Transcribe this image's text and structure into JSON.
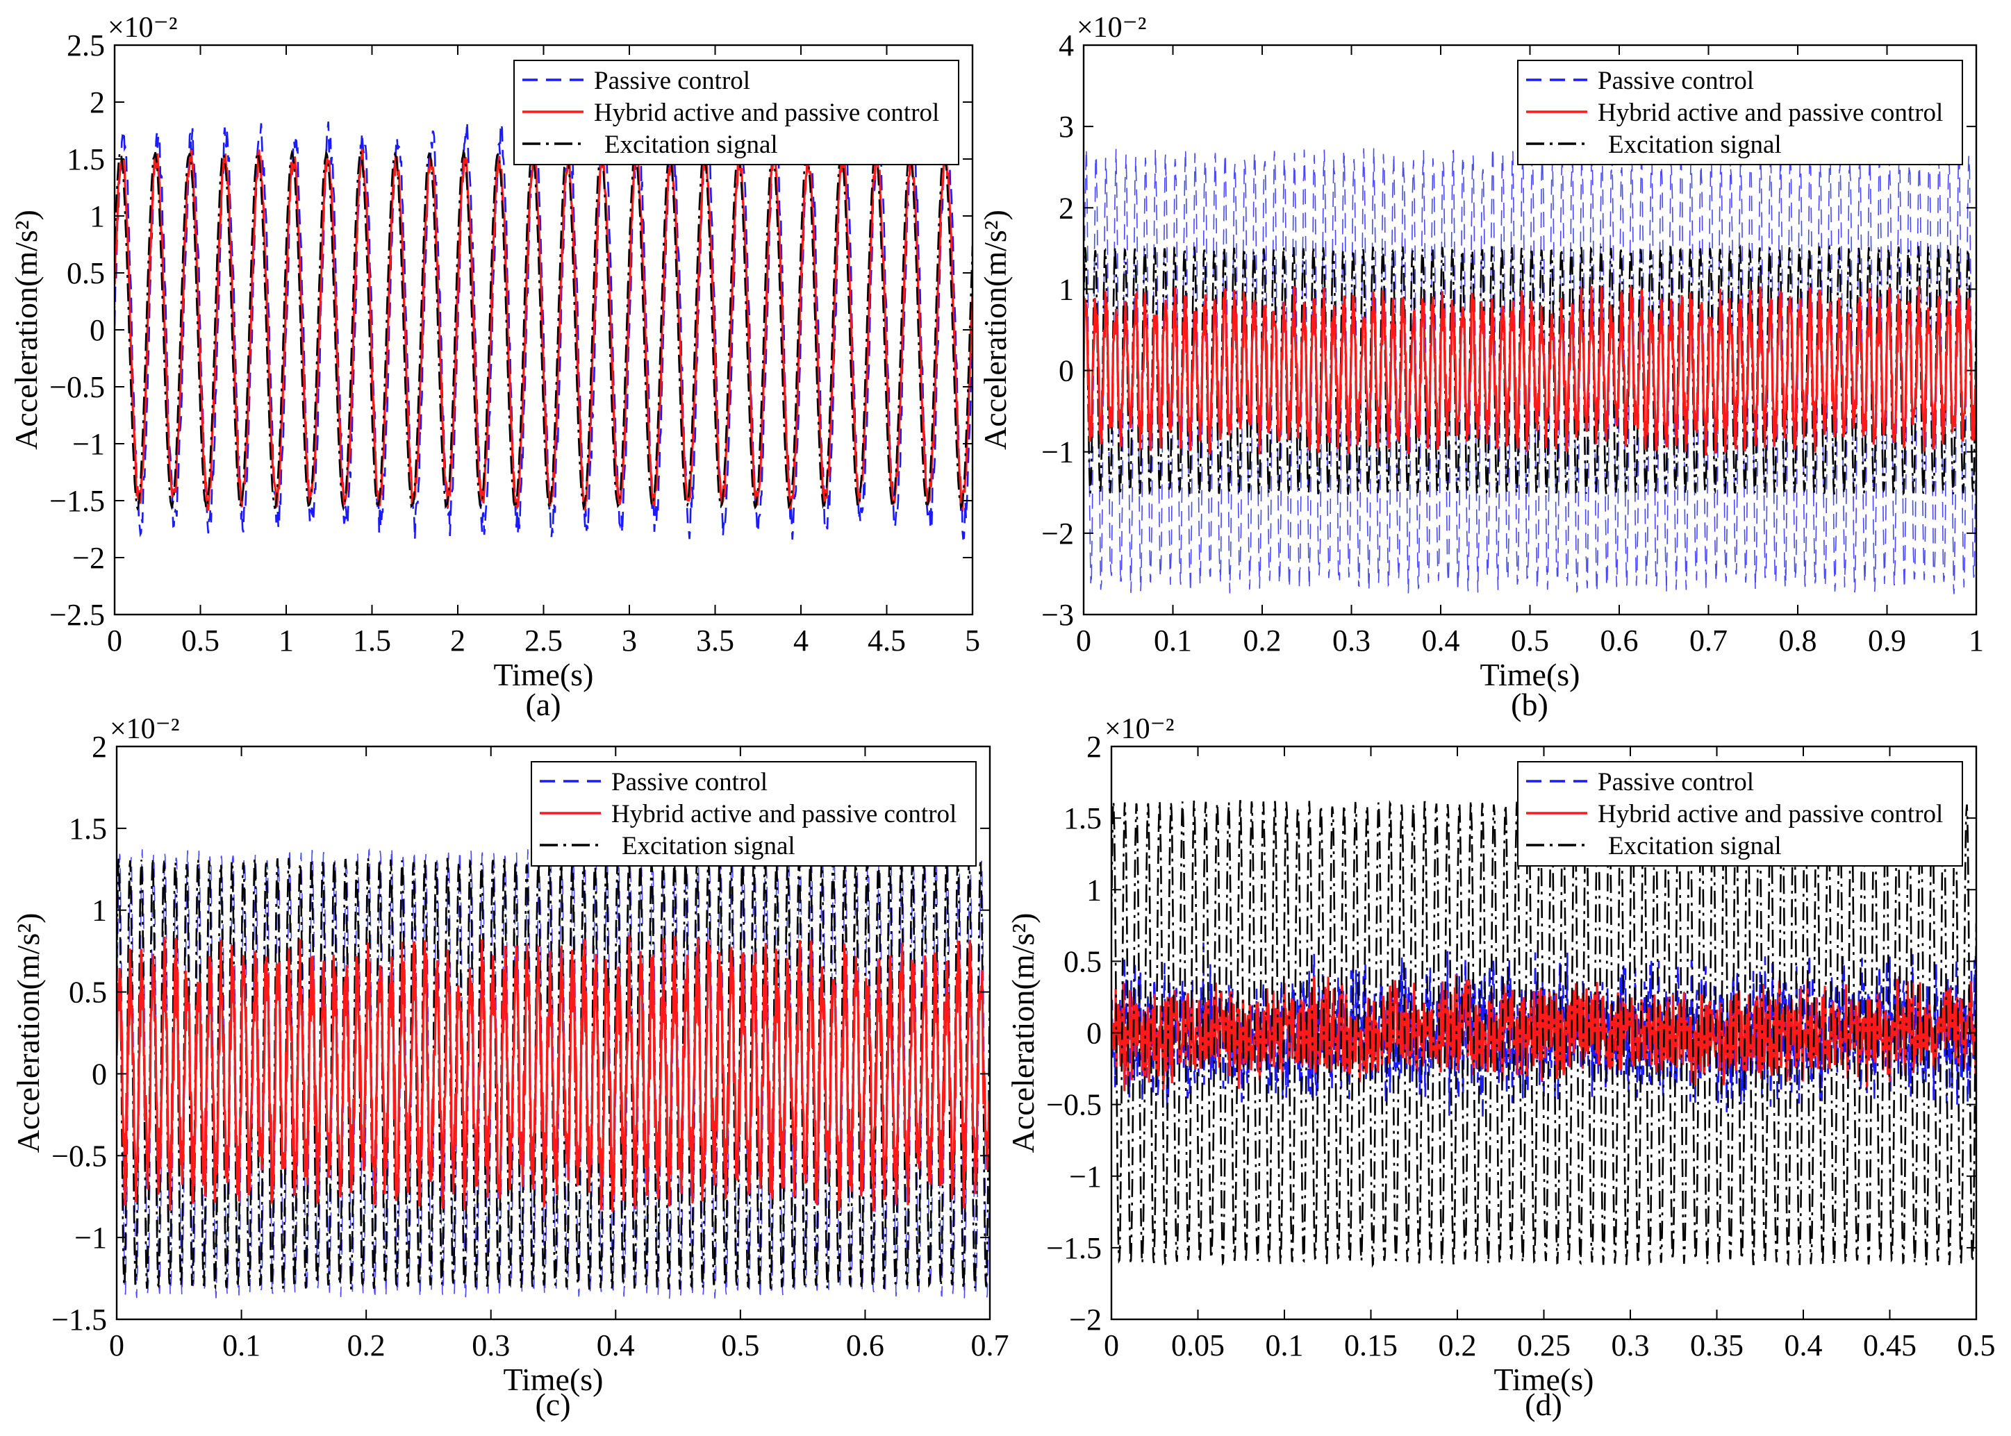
{
  "figure": {
    "description_labels": [
      "(a)",
      "(b)",
      "(c)",
      "(d)"
    ]
  },
  "colors": {
    "passive": "#1a1aff",
    "hybrid": "#ff1a1a",
    "excitation": "#000000"
  },
  "chart_data": [
    {
      "type": "line",
      "panel_label": "(a)",
      "xlabel": "Time(s)",
      "ylabel": "Acceleration(m/s²)",
      "scale_label": "×10⁻²",
      "xlim": [
        0,
        5
      ],
      "ylim": [
        -2.5,
        2.5
      ],
      "xticks": [
        0,
        0.5,
        1,
        1.5,
        2,
        2.5,
        3,
        3.5,
        4,
        4.5,
        5
      ],
      "xtick_labels": [
        "0",
        "0.5",
        "1",
        "1.5",
        "2",
        "2.5",
        "3",
        "3.5",
        "4",
        "4.5",
        "5"
      ],
      "yticks": [
        -2.5,
        -2,
        -1.5,
        -1,
        -0.5,
        0,
        0.5,
        1,
        1.5,
        2,
        2.5
      ],
      "ytick_labels": [
        "−2.5",
        "−2",
        "−1.5",
        "−1",
        "−0.5",
        "0",
        "0.5",
        "1",
        "1.5",
        "2",
        "2.5"
      ],
      "legend": [
        "Passive control",
        "Hybrid active and passive control",
        "Excitation signal"
      ],
      "legend_position": "top-right",
      "series": [
        {
          "name": "Passive control",
          "pattern": "sine",
          "freq": 5,
          "amplitude": 1.7,
          "noise": 0.15,
          "samples": 1200
        },
        {
          "name": "Hybrid active and passive control",
          "pattern": "sine",
          "freq": 5,
          "amplitude": 1.5,
          "noise": 0.1,
          "samples": 1200
        },
        {
          "name": "Excitation signal",
          "pattern": "sine",
          "freq": 5,
          "amplitude": 1.55,
          "noise": 0.02,
          "samples": 1200
        }
      ]
    },
    {
      "type": "line",
      "panel_label": "(b)",
      "xlabel": "Time(s)",
      "ylabel": "Acceleration(m/s²)",
      "scale_label": "×10⁻²",
      "xlim": [
        0,
        1
      ],
      "ylim": [
        -3,
        4
      ],
      "xticks": [
        0,
        0.1,
        0.2,
        0.3,
        0.4,
        0.5,
        0.6,
        0.7,
        0.8,
        0.9,
        1
      ],
      "xtick_labels": [
        "0",
        "0.1",
        "0.2",
        "0.3",
        "0.4",
        "0.5",
        "0.6",
        "0.7",
        "0.8",
        "0.9",
        "1"
      ],
      "yticks": [
        -3,
        -2,
        -1,
        0,
        1,
        2,
        3,
        4
      ],
      "ytick_labels": [
        "−3",
        "−2",
        "−1",
        "0",
        "1",
        "2",
        "3",
        "4"
      ],
      "legend": [
        "Passive control",
        "Hybrid active and passive control",
        "Excitation signal"
      ],
      "legend_position": "top-right",
      "series": [
        {
          "name": "Passive control",
          "pattern": "sine",
          "freq": 90,
          "amplitude": 2.6,
          "noise": 0.15,
          "samples": 2400
        },
        {
          "name": "Hybrid active and passive control",
          "pattern": "sine",
          "freq": 90,
          "amplitude": 0.75,
          "noise": 0.3,
          "samples": 1600
        },
        {
          "name": "Excitation signal",
          "pattern": "sine",
          "freq": 90,
          "amplitude": 1.5,
          "noise": 0.03,
          "samples": 2400
        }
      ]
    },
    {
      "type": "line",
      "panel_label": "(c)",
      "xlabel": "Time(s)",
      "ylabel": "Acceleration(m/s²)",
      "scale_label": "×10⁻²",
      "xlim": [
        0,
        0.7
      ],
      "ylim": [
        -1.5,
        2
      ],
      "xticks": [
        0,
        0.1,
        0.2,
        0.3,
        0.4,
        0.5,
        0.6,
        0.7
      ],
      "xtick_labels": [
        "0",
        "0.1",
        "0.2",
        "0.3",
        "0.4",
        "0.5",
        "0.6",
        "0.7"
      ],
      "yticks": [
        -1.5,
        -1,
        -0.5,
        0,
        0.5,
        1,
        1.5,
        2
      ],
      "ytick_labels": [
        "−1.5",
        "−1",
        "−0.5",
        "0",
        "0.5",
        "1",
        "1.5",
        "2"
      ],
      "legend": [
        "Passive control",
        "Hybrid active and passive control",
        "Excitation signal"
      ],
      "legend_position": "top-right",
      "series": [
        {
          "name": "Passive control",
          "pattern": "sine",
          "freq": 110,
          "amplitude": 1.33,
          "noise": 0.05,
          "samples": 2400
        },
        {
          "name": "Hybrid active and passive control",
          "pattern": "sine",
          "freq": 110,
          "amplitude": 0.6,
          "noise": 0.25,
          "samples": 1800
        },
        {
          "name": "Excitation signal",
          "pattern": "sine",
          "freq": 110,
          "amplitude": 1.3,
          "noise": 0.02,
          "samples": 2400
        }
      ]
    },
    {
      "type": "line",
      "panel_label": "(d)",
      "xlabel": "Time(s)",
      "ylabel": "Acceleration(m/s²)",
      "scale_label": "×10⁻²",
      "xlim": [
        0,
        0.5
      ],
      "ylim": [
        -2,
        2
      ],
      "xticks": [
        0,
        0.05,
        0.1,
        0.15,
        0.2,
        0.25,
        0.3,
        0.35,
        0.4,
        0.45,
        0.5
      ],
      "xtick_labels": [
        "0",
        "0.05",
        "0.1",
        "0.15",
        "0.2",
        "0.25",
        "0.3",
        "0.35",
        "0.4",
        "0.45",
        "0.5"
      ],
      "yticks": [
        -2,
        -1.5,
        -1,
        -0.5,
        0,
        0.5,
        1,
        1.5,
        2
      ],
      "ytick_labels": [
        "−2",
        "−1.5",
        "−1",
        "−0.5",
        "0",
        "0.5",
        "1",
        "1.5",
        "2"
      ],
      "legend": [
        "Passive control",
        "Hybrid active and passive control",
        "Excitation signal"
      ],
      "legend_position": "top-right",
      "series": [
        {
          "name": "Passive control",
          "pattern": "noise",
          "freq": 0,
          "amplitude": 0.35,
          "noise": 0.3,
          "samples": 1400
        },
        {
          "name": "Hybrid active and passive control",
          "pattern": "noise",
          "freq": 0,
          "amplitude": 0.25,
          "noise": 0.2,
          "samples": 1400
        },
        {
          "name": "Excitation signal",
          "pattern": "sine",
          "freq": 150,
          "amplitude": 1.6,
          "noise": 0.03,
          "samples": 2400
        }
      ]
    }
  ]
}
